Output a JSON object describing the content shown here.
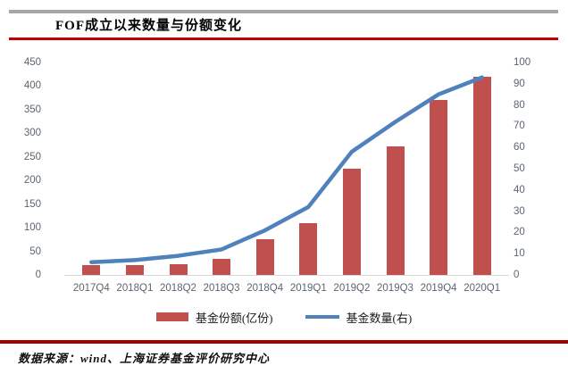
{
  "header": {
    "title": "FOF成立以来数量与份额变化"
  },
  "footer": {
    "source": "数据来源：wind、上海证券基金评价研究中心"
  },
  "colors": {
    "bar": "#C0504D",
    "line": "#4F81BD",
    "rule_top": "#C00000",
    "rule_bottom": "#A40000",
    "rule_gray": "#A6A6A6",
    "axis_text": "#5B6570",
    "baseline": "#D9D9D9"
  },
  "chart_data": {
    "type": "bar",
    "subtype": "combo bar+line, dual axis",
    "title": "FOF成立以来数量与份额变化",
    "categories": [
      "2017Q4",
      "2018Q1",
      "2018Q2",
      "2018Q3",
      "2018Q4",
      "2019Q1",
      "2019Q2",
      "2019Q3",
      "2019Q4",
      "2020Q1"
    ],
    "series": [
      {
        "name": "基金份额(亿份)",
        "type": "bar",
        "axis": "left",
        "color": "#C0504D",
        "values": [
          21,
          20,
          23,
          34,
          75,
          110,
          225,
          272,
          370,
          420
        ]
      },
      {
        "name": "基金数量(右)",
        "type": "line",
        "axis": "right",
        "color": "#4F81BD",
        "values": [
          6,
          7,
          9,
          12,
          21,
          32,
          58,
          72,
          85,
          93
        ]
      }
    ],
    "left_axis": {
      "min": 0,
      "max": 450,
      "step": 50
    },
    "right_axis": {
      "min": 0,
      "max": 100,
      "step": 10
    },
    "grid": false,
    "legend_position": "bottom"
  }
}
